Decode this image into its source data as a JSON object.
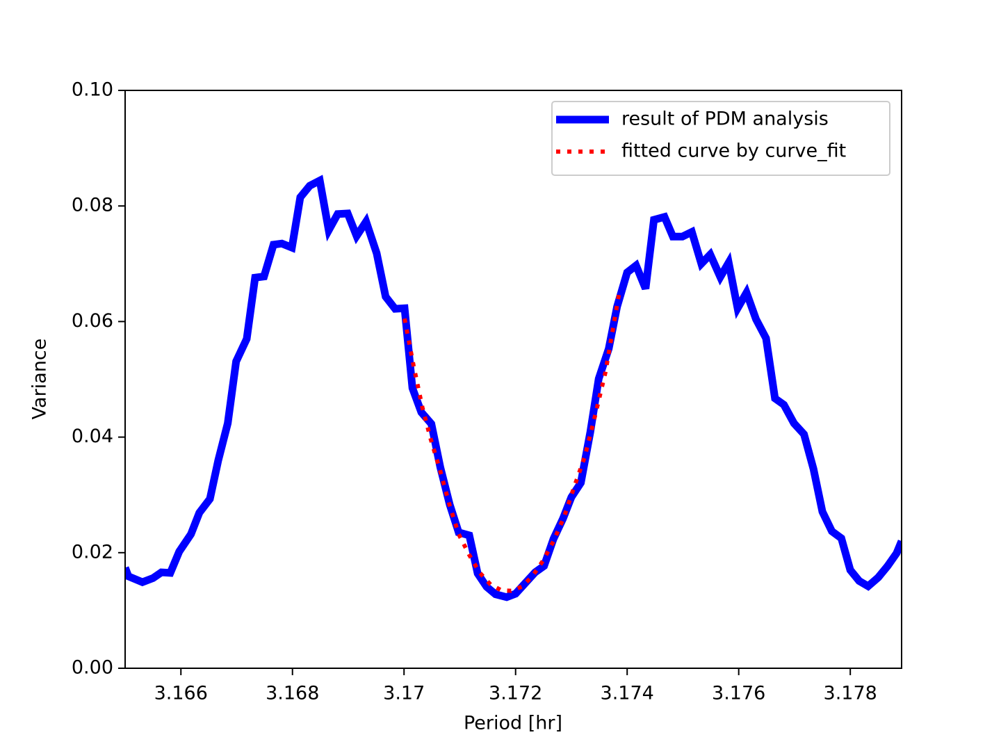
{
  "chart_data": {
    "type": "line",
    "xlabel": "Period [hr]",
    "ylabel": "Variance",
    "xlim": [
      3.165,
      3.17892
    ],
    "ylim": [
      0,
      0.1
    ],
    "xticks": [
      3.166,
      3.168,
      3.17,
      3.172,
      3.174,
      3.176,
      3.178
    ],
    "yticks": [
      {
        "value": 0,
        "label": "0.00"
      },
      {
        "value": 0.02,
        "label": "0.02"
      },
      {
        "value": 0.04,
        "label": "0.04"
      },
      {
        "value": 0.06,
        "label": "0.06"
      },
      {
        "value": 0.08,
        "label": "0.08"
      },
      {
        "value": 0.1,
        "label": "0.10"
      }
    ],
    "legend": "upper right",
    "series": [
      {
        "name": "result of PDM analysis",
        "color": "#0000ff",
        "style": "solid",
        "x": [
          3.165,
          3.16506,
          3.16531,
          3.1655,
          3.16565,
          3.16581,
          3.16597,
          3.16618,
          3.16633,
          3.16652,
          3.16667,
          3.16684,
          3.16699,
          3.16718,
          3.16733,
          3.16749,
          3.16766,
          3.16781,
          3.16799,
          3.16814,
          3.16831,
          3.16849,
          3.16865,
          3.16881,
          3.16899,
          3.16915,
          3.16932,
          3.16951,
          3.16967,
          3.16984,
          3.17001,
          3.17015,
          3.17031,
          3.17049,
          3.17065,
          3.17082,
          3.17098,
          3.17117,
          3.17132,
          3.17148,
          3.17164,
          3.17184,
          3.172,
          3.17218,
          3.17235,
          3.17251,
          3.17268,
          3.17285,
          3.173,
          3.17317,
          3.17334,
          3.17349,
          3.17367,
          3.17382,
          3.174,
          3.17416,
          3.17433,
          3.17448,
          3.17467,
          3.17482,
          3.17499,
          3.17516,
          3.17533,
          3.17549,
          3.17567,
          3.17582,
          3.17598,
          3.17614,
          3.17631,
          3.17649,
          3.17665,
          3.17681,
          3.17699,
          3.17717,
          3.17734,
          3.1775,
          3.17767,
          3.17784,
          3.178,
          3.17816,
          3.17832,
          3.1785,
          3.17867,
          3.17883,
          3.17892
        ],
        "values": [
          0.0174,
          0.0159,
          0.0149,
          0.0156,
          0.0166,
          0.0165,
          0.0202,
          0.0232,
          0.0269,
          0.0293,
          0.036,
          0.0424,
          0.0531,
          0.057,
          0.0676,
          0.0678,
          0.0733,
          0.0735,
          0.0728,
          0.0815,
          0.0835,
          0.0844,
          0.0758,
          0.0786,
          0.0787,
          0.0748,
          0.0773,
          0.0718,
          0.0643,
          0.0622,
          0.0623,
          0.0485,
          0.0443,
          0.0423,
          0.0348,
          0.0283,
          0.0235,
          0.023,
          0.0164,
          0.0141,
          0.0128,
          0.0123,
          0.0129,
          0.0148,
          0.0166,
          0.0177,
          0.0224,
          0.0259,
          0.0296,
          0.0321,
          0.0409,
          0.0501,
          0.0553,
          0.0626,
          0.0685,
          0.0697,
          0.0657,
          0.0776,
          0.0781,
          0.0747,
          0.0747,
          0.0755,
          0.07,
          0.0716,
          0.0677,
          0.0702,
          0.0623,
          0.065,
          0.0604,
          0.0571,
          0.0467,
          0.0456,
          0.0424,
          0.0405,
          0.0345,
          0.0271,
          0.0237,
          0.0225,
          0.017,
          0.0151,
          0.0142,
          0.0157,
          0.0177,
          0.0199,
          0.022
        ]
      },
      {
        "name": "fitted curve by curve_fit",
        "color": "#ff0000",
        "style": "dotted",
        "x": [
          3.17001,
          3.17017,
          3.17033,
          3.17048,
          3.17065,
          3.17082,
          3.17098,
          3.17117,
          3.17136,
          3.17155,
          3.17174,
          3.17192,
          3.17211,
          3.1723,
          3.17249,
          3.17268,
          3.17287,
          3.17304,
          3.17324,
          3.17343,
          3.17361,
          3.17386
        ],
        "values": [
          0.0605,
          0.0524,
          0.0451,
          0.0396,
          0.0341,
          0.0281,
          0.0232,
          0.0196,
          0.0165,
          0.0145,
          0.0135,
          0.0134,
          0.0141,
          0.0159,
          0.0186,
          0.022,
          0.0262,
          0.0311,
          0.0366,
          0.0439,
          0.0512,
          0.0651
        ]
      }
    ]
  }
}
